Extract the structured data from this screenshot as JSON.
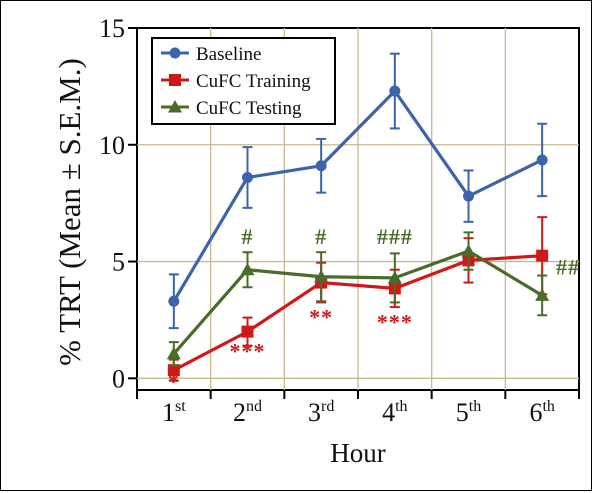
{
  "chart_data": {
    "type": "line",
    "ylabel": "% TRT (Mean ± S.E.M.)",
    "xlabel": "Hour",
    "categories": [
      {
        "base": "1",
        "sup": "st"
      },
      {
        "base": "2",
        "sup": "nd"
      },
      {
        "base": "3",
        "sup": "rd"
      },
      {
        "base": "4",
        "sup": "th"
      },
      {
        "base": "5",
        "sup": "th"
      },
      {
        "base": "6",
        "sup": "th"
      }
    ],
    "ylim": [
      -0.5,
      15
    ],
    "yticks": [
      0,
      5,
      10,
      15
    ],
    "grid": true,
    "legend_position": "top-left",
    "series": [
      {
        "name": "Baseline",
        "color": "#3c64a8",
        "marker": "circle",
        "values": [
          3.3,
          8.6,
          9.1,
          12.3,
          7.8,
          9.35
        ],
        "sem": [
          1.15,
          1.3,
          1.15,
          1.6,
          1.1,
          1.55
        ]
      },
      {
        "name": "CuFC Training",
        "color": "#d01818",
        "marker": "square",
        "values": [
          0.35,
          2.0,
          4.1,
          3.85,
          5.05,
          5.25
        ],
        "sem": [
          0.45,
          0.6,
          0.85,
          0.8,
          0.95,
          1.65
        ]
      },
      {
        "name": "CuFC Testing",
        "color": "#4a6b2a",
        "marker": "triangle",
        "values": [
          1.05,
          4.65,
          4.35,
          4.3,
          5.45,
          3.55
        ],
        "sem": [
          0.5,
          0.75,
          1.05,
          1.05,
          0.8,
          0.85
        ]
      }
    ],
    "annotations": [
      {
        "text": "*",
        "x": 0,
        "y": -0.45,
        "color": "#d01818"
      },
      {
        "text": "***",
        "x": 1,
        "y": 0.85,
        "color": "#d01818"
      },
      {
        "text": "**",
        "x": 2,
        "y": 2.3,
        "color": "#d01818"
      },
      {
        "text": "***",
        "x": 3,
        "y": 2.1,
        "color": "#d01818"
      },
      {
        "text": "#",
        "x": 1,
        "y": 5.75,
        "color": "#4a6b2a"
      },
      {
        "text": "#",
        "x": 2,
        "y": 5.75,
        "color": "#4a6b2a"
      },
      {
        "text": "###",
        "x": 3,
        "y": 5.75,
        "color": "#4a6b2a"
      },
      {
        "text": "##",
        "x": 5.35,
        "y": 4.45,
        "color": "#4a6b2a"
      }
    ]
  }
}
